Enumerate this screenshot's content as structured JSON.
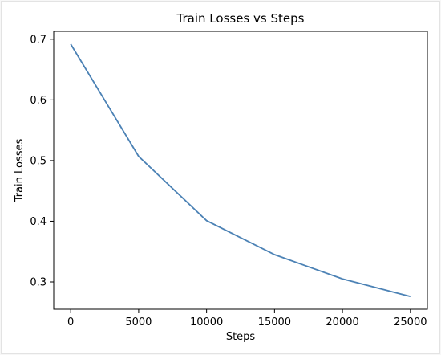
{
  "chart_data": {
    "type": "line",
    "title": "Train Losses vs Steps",
    "xlabel": "Steps",
    "ylabel": "Train Losses",
    "x": [
      0,
      5000,
      10000,
      15000,
      20000,
      25000
    ],
    "series": [
      {
        "values": [
          0.692,
          0.507,
          0.401,
          0.345,
          0.305,
          0.276
        ]
      }
    ],
    "xticks": [
      0,
      5000,
      10000,
      15000,
      20000,
      25000
    ],
    "yticks": [
      0.3,
      0.4,
      0.5,
      0.6,
      0.7
    ],
    "xlim": [
      -1250,
      26250
    ],
    "ylim": [
      0.255,
      0.713
    ],
    "grid": false,
    "line_color": "#4c82b5"
  }
}
